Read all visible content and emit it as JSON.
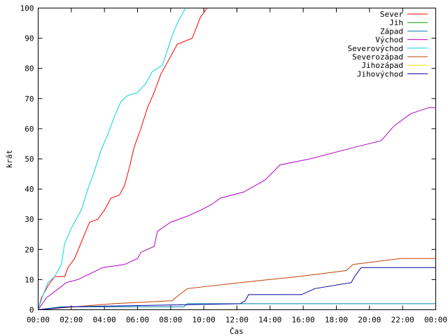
{
  "chart_data": {
    "type": "line",
    "title": "",
    "xlabel": "Čas",
    "ylabel": "krát",
    "xlim": [
      0,
      24
    ],
    "ylim": [
      0,
      100
    ],
    "x_unit": "hours",
    "xticks": [
      0,
      2,
      4,
      6,
      8,
      10,
      12,
      14,
      16,
      18,
      20,
      22,
      24
    ],
    "xtick_labels": [
      "00:00",
      "02:00",
      "04:00",
      "06:00",
      "08:00",
      "10:00",
      "12:00",
      "14:00",
      "16:00",
      "18:00",
      "20:00",
      "22:00",
      "00:00"
    ],
    "yticks": [
      0,
      10,
      20,
      30,
      40,
      50,
      60,
      70,
      80,
      90,
      100
    ],
    "grid": false,
    "legend_position": "top-right",
    "series": [
      {
        "name": "Sever",
        "color": "#ff0000",
        "points": [
          [
            0.0,
            0
          ],
          [
            0.2,
            4
          ],
          [
            0.6,
            8
          ],
          [
            1.0,
            11
          ],
          [
            1.6,
            11
          ],
          [
            1.8,
            14
          ],
          [
            2.2,
            17
          ],
          [
            2.5,
            21
          ],
          [
            2.8,
            25
          ],
          [
            3.1,
            29
          ],
          [
            3.6,
            30
          ],
          [
            4.0,
            33
          ],
          [
            4.4,
            37
          ],
          [
            4.9,
            38
          ],
          [
            5.2,
            41
          ],
          [
            5.5,
            47
          ],
          [
            5.8,
            54
          ],
          [
            6.2,
            60
          ],
          [
            6.6,
            67
          ],
          [
            7.0,
            72
          ],
          [
            7.4,
            78
          ],
          [
            7.9,
            83
          ],
          [
            8.4,
            88
          ],
          [
            9.3,
            90
          ],
          [
            9.8,
            97
          ],
          [
            10.2,
            100
          ]
        ]
      },
      {
        "name": "Jih",
        "color": "#00a000",
        "points": []
      },
      {
        "name": "Západ",
        "color": "#0080b0",
        "points": [
          [
            0.0,
            0
          ],
          [
            1.4,
            1
          ],
          [
            8.8,
            1
          ],
          [
            9.0,
            2
          ],
          [
            24.0,
            2
          ]
        ]
      },
      {
        "name": "Východ",
        "color": "#b000c0",
        "points": [
          [
            0.0,
            0
          ],
          [
            0.5,
            4
          ],
          [
            1.0,
            6
          ],
          [
            1.7,
            9
          ],
          [
            2.4,
            10
          ],
          [
            3.9,
            14
          ],
          [
            5.2,
            15
          ],
          [
            6.0,
            17
          ],
          [
            6.2,
            19
          ],
          [
            7.0,
            21
          ],
          [
            7.2,
            26
          ],
          [
            8.0,
            29
          ],
          [
            9.0,
            31
          ],
          [
            9.8,
            33
          ],
          [
            10.5,
            35
          ],
          [
            11.0,
            37
          ],
          [
            12.4,
            39
          ],
          [
            13.7,
            43
          ],
          [
            14.6,
            48
          ],
          [
            16.4,
            50
          ],
          [
            19.2,
            54
          ],
          [
            20.7,
            56
          ],
          [
            21.5,
            61
          ],
          [
            22.5,
            65
          ],
          [
            23.6,
            67
          ],
          [
            24.0,
            67
          ]
        ]
      },
      {
        "name": "Severovýchod",
        "color": "#00d8d8",
        "points": [
          [
            0.0,
            0
          ],
          [
            0.3,
            5
          ],
          [
            0.6,
            9
          ],
          [
            1.0,
            11
          ],
          [
            1.4,
            15
          ],
          [
            1.6,
            22
          ],
          [
            2.0,
            27
          ],
          [
            2.6,
            33
          ],
          [
            3.0,
            40
          ],
          [
            3.4,
            46
          ],
          [
            3.8,
            53
          ],
          [
            4.2,
            58
          ],
          [
            4.6,
            64
          ],
          [
            5.0,
            69
          ],
          [
            5.4,
            71
          ],
          [
            6.0,
            72
          ],
          [
            6.5,
            75
          ],
          [
            6.9,
            79
          ],
          [
            7.5,
            81
          ],
          [
            7.8,
            86
          ],
          [
            8.1,
            91
          ],
          [
            8.4,
            95
          ],
          [
            8.8,
            99
          ],
          [
            8.9,
            100
          ]
        ]
      },
      {
        "name": "Severozápad",
        "color": "#c04000",
        "points": [
          [
            0.0,
            0
          ],
          [
            4.5,
            2
          ],
          [
            8.1,
            3
          ],
          [
            8.3,
            4
          ],
          [
            9.0,
            7
          ],
          [
            12.2,
            9
          ],
          [
            15.7,
            11
          ],
          [
            18.6,
            13
          ],
          [
            19.0,
            15
          ],
          [
            21.9,
            17
          ],
          [
            24.0,
            17
          ]
        ]
      },
      {
        "name": "Jihozápad",
        "color": "#e8e000",
        "points": []
      },
      {
        "name": "Jihovýchod",
        "color": "#0000a0",
        "points": [
          [
            0.0,
            0
          ],
          [
            1.9,
            1
          ],
          [
            12.2,
            2
          ],
          [
            12.5,
            3
          ],
          [
            12.7,
            5
          ],
          [
            15.9,
            5
          ],
          [
            16.7,
            7
          ],
          [
            18.9,
            9
          ],
          [
            19.1,
            11
          ],
          [
            19.5,
            14
          ],
          [
            24.0,
            14
          ]
        ]
      }
    ]
  }
}
